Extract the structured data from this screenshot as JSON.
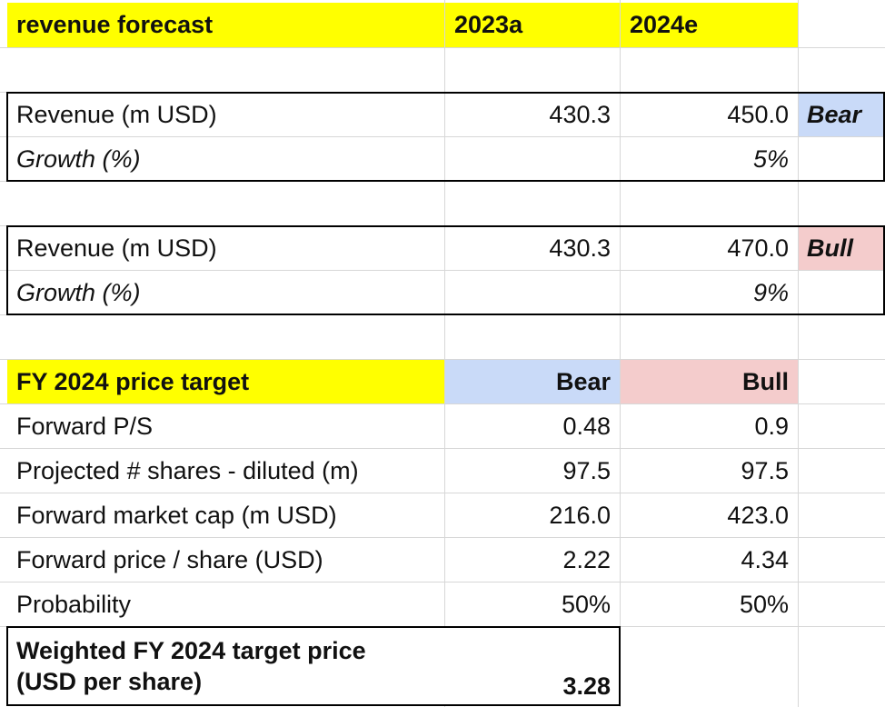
{
  "forecast": {
    "title": "revenue forecast",
    "col_2023": "2023a",
    "col_2024": "2024e",
    "bear_block": {
      "revenue_label": "Revenue (m USD)",
      "revenue_2023": "430.3",
      "revenue_2024": "450.0",
      "growth_label": "Growth (%)",
      "growth_2024": "5%",
      "scenario": "Bear"
    },
    "bull_block": {
      "revenue_label": "Revenue (m USD)",
      "revenue_2023": "430.3",
      "revenue_2024": "470.0",
      "growth_label": "Growth (%)",
      "growth_2024": "9%",
      "scenario": "Bull"
    }
  },
  "price_target": {
    "title": "FY 2024 price target",
    "col_bear": "Bear",
    "col_bull": "Bull",
    "rows": [
      {
        "label": "Forward P/S",
        "bear": "0.48",
        "bull": "0.9"
      },
      {
        "label": "Projected # shares - diluted (m)",
        "bear": "97.5",
        "bull": "97.5"
      },
      {
        "label": "Forward market cap (m USD)",
        "bear": "216.0",
        "bull": "423.0"
      },
      {
        "label": "Forward price / share (USD)",
        "bear": "2.22",
        "bull": "4.34"
      },
      {
        "label": "Probability",
        "bear": "50%",
        "bull": "50%"
      }
    ],
    "weighted_label_line1": "Weighted FY 2024 target price",
    "weighted_label_line2": "(USD per share)",
    "weighted_value": "3.28"
  },
  "colors": {
    "header_yellow": "#ffff00",
    "bear_blue": "#c9daf8",
    "bull_pink": "#f4cccc",
    "gridline": "#d7d7d7"
  }
}
